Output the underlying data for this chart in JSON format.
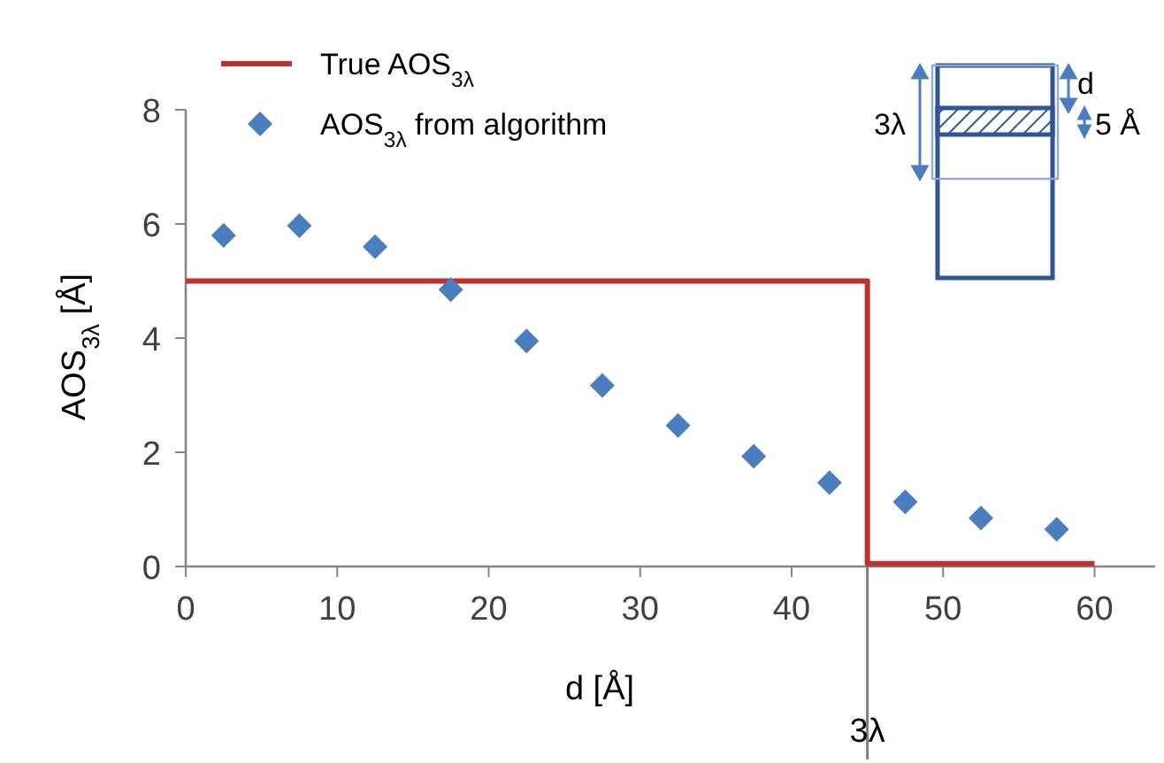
{
  "chart_data": {
    "type": "scatter",
    "xlabel": "d [Å]",
    "ylabel": "AOS$_{3λ}$ [Å]",
    "xlim": [
      0,
      64
    ],
    "xticks": [
      0,
      10,
      20,
      30,
      40,
      50,
      60
    ],
    "ylim": [
      0,
      8
    ],
    "yticks": [
      0,
      2,
      4,
      6,
      8
    ],
    "grid": false,
    "legend": "top left",
    "series": [
      {
        "name": "True AOS$_{3λ}$",
        "type": "step",
        "color": "#c0302c",
        "marker": "none",
        "x": [
          0,
          45,
          45,
          60
        ],
        "values": [
          5,
          5,
          0.05,
          0.05
        ]
      },
      {
        "name": "AOS$_{3λ}$ from algorithm",
        "color": "#4a7ebf",
        "marker": "diamond",
        "x": [
          2.5,
          7.5,
          12.5,
          17.5,
          22.5,
          27.5,
          32.5,
          37.5,
          42.5,
          47.5,
          52.5,
          57.5
        ],
        "values": [
          5.8,
          5.97,
          5.6,
          4.85,
          3.95,
          3.17,
          2.47,
          1.93,
          1.47,
          1.13,
          0.85,
          0.65
        ]
      }
    ],
    "ref_lines": [
      {
        "axis": "x",
        "value": 45,
        "label": "3λ",
        "color": "#7f7f7f"
      }
    ],
    "annotations": [
      "3λ",
      "d",
      "5 Å"
    ]
  }
}
